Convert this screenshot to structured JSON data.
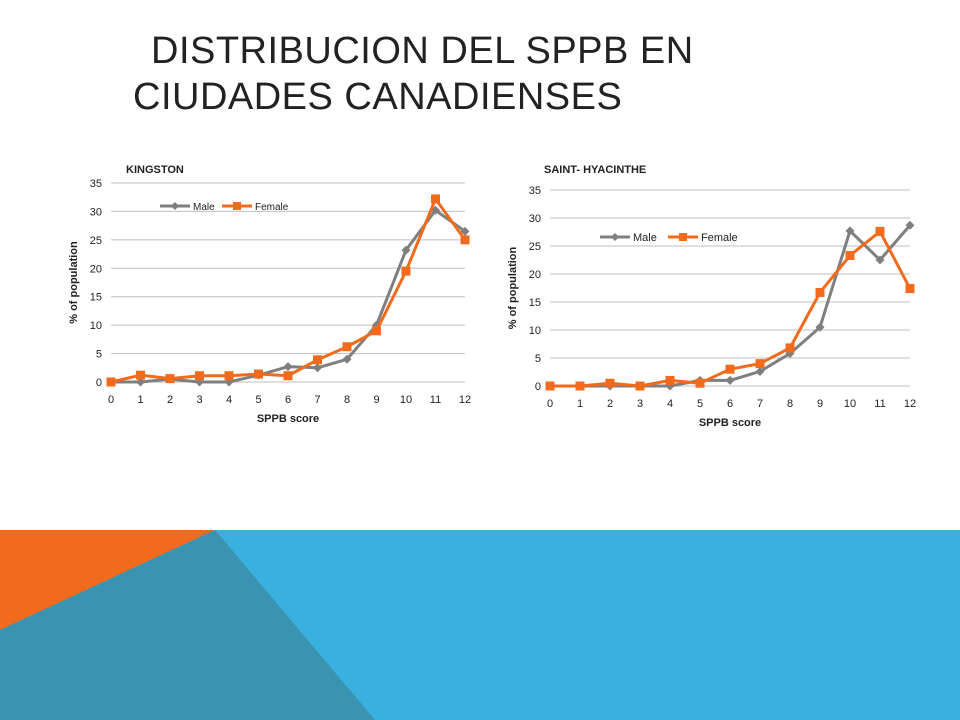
{
  "slide": {
    "title_line1": "DISTRIBUCION  DEL SPPB  EN",
    "title_line2": "CIUDADES CANADIENSES"
  },
  "colors": {
    "male": "#7f7f7f",
    "female": "#f26b1d",
    "grid": "#bfbfbf",
    "banner_blue": "#3ab0de",
    "banner_orange": "#f26b1d",
    "banner_teal": "#3a93b0"
  },
  "chart_data": [
    {
      "type": "line",
      "title": "KINGSTON",
      "xlabel": "SPPB score",
      "ylabel": "% of population",
      "x": [
        0,
        1,
        2,
        3,
        4,
        5,
        6,
        7,
        8,
        9,
        10,
        11,
        12
      ],
      "yticks": [
        0,
        5,
        10,
        15,
        20,
        25,
        30,
        35
      ],
      "ylim": [
        0,
        35
      ],
      "grid": true,
      "legend": "top-left",
      "series": [
        {
          "name": "Male",
          "marker": "diamond",
          "values": [
            0,
            0,
            0.5,
            0,
            0,
            1.2,
            2.7,
            2.5,
            4,
            10,
            23.2,
            30.2,
            26.5
          ]
        },
        {
          "name": "Female",
          "marker": "square",
          "values": [
            0,
            1.2,
            0.6,
            1.1,
            1.1,
            1.4,
            1.1,
            3.9,
            6.2,
            9,
            19.5,
            32.2,
            25
          ]
        }
      ]
    },
    {
      "type": "line",
      "title": "SAINT- HYACINTHE",
      "xlabel": "SPPB score",
      "ylabel": "% of population",
      "x": [
        0,
        1,
        2,
        3,
        4,
        5,
        6,
        7,
        8,
        9,
        10,
        11,
        12
      ],
      "yticks": [
        0,
        5,
        10,
        15,
        20,
        25,
        30,
        35
      ],
      "ylim": [
        0,
        35
      ],
      "grid": true,
      "legend": "top-left",
      "series": [
        {
          "name": "Male",
          "marker": "diamond",
          "values": [
            0,
            0,
            0,
            0,
            0,
            1,
            1,
            2.6,
            5.8,
            10.5,
            27.7,
            22.5,
            28.7
          ]
        },
        {
          "name": "Female",
          "marker": "square",
          "values": [
            0,
            0,
            0.5,
            0,
            1,
            0.5,
            3,
            4,
            6.8,
            16.7,
            23.3,
            27.6,
            17.4
          ]
        }
      ]
    }
  ]
}
